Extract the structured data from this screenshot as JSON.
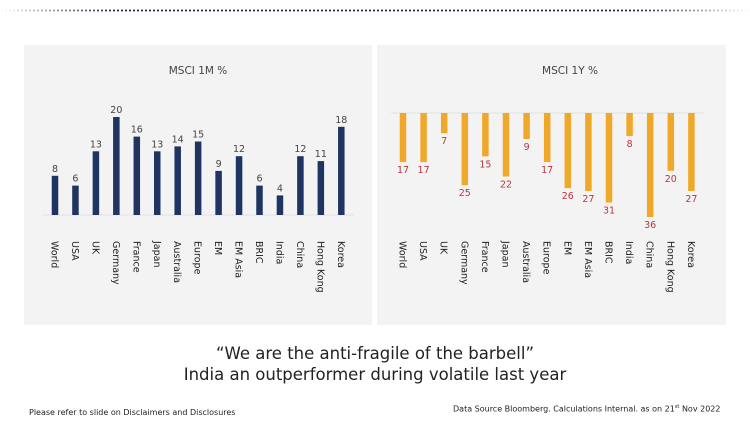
{
  "colors": {
    "navy": "#1f3461",
    "orange": "#f0a82a",
    "negative_label": "#b8363f",
    "positive_label": "#444444",
    "panel_bg": "#f3f3f3"
  },
  "chart_data": [
    {
      "type": "bar",
      "title": "MSCI 1M %",
      "categories": [
        "World",
        "USA",
        "UK",
        "Germany",
        "France",
        "Japan",
        "Australia",
        "Europe",
        "EM",
        "EM Asia",
        "BRIC",
        "India",
        "China",
        "Hong Kong",
        "Korea"
      ],
      "values": [
        8,
        6,
        13,
        20,
        16,
        13,
        14,
        15,
        9,
        12,
        6,
        4,
        12,
        11,
        18
      ],
      "value_labels": [
        "8",
        "6",
        "13",
        "20",
        "16",
        "13",
        "14",
        "15",
        "9",
        "12",
        "6",
        "4",
        "12",
        "11",
        "18"
      ],
      "xlabel": "",
      "ylabel": "",
      "ylim": [
        0,
        20
      ],
      "grid": false,
      "legend": "none",
      "color": "#1f3461"
    },
    {
      "type": "bar",
      "title": "MSCI 1Y %",
      "categories": [
        "World",
        "USA",
        "UK",
        "Germany",
        "France",
        "Japan",
        "Australia",
        "Europe",
        "EM",
        "EM Asia",
        "BRIC",
        "India",
        "China",
        "Hong Kong",
        "Korea"
      ],
      "values": [
        -17,
        -17,
        -7,
        -25,
        -15,
        -22,
        -9,
        -17,
        -26,
        -27,
        -31,
        -8,
        -36,
        -20,
        -27
      ],
      "value_labels": [
        "17",
        "17",
        "7",
        "25",
        "15",
        "22",
        "9",
        "17",
        "26",
        "27",
        "31",
        "8",
        "36",
        "20",
        "27"
      ],
      "xlabel": "",
      "ylabel": "",
      "ylim": [
        -36,
        0
      ],
      "grid": false,
      "legend": "none",
      "color": "#f0a82a"
    }
  ],
  "headline": {
    "line1": "“We are the anti-fragile of the barbell”",
    "line2": "India an outperformer during volatile last year"
  },
  "footer": {
    "disclaimer": "Please refer to slide on Disclaimers and Disclosures",
    "source_prefix": "Data Source Bloomberg. Calculations Internal. as on 21",
    "source_sup": "st",
    "source_suffix": " Nov 2022"
  }
}
